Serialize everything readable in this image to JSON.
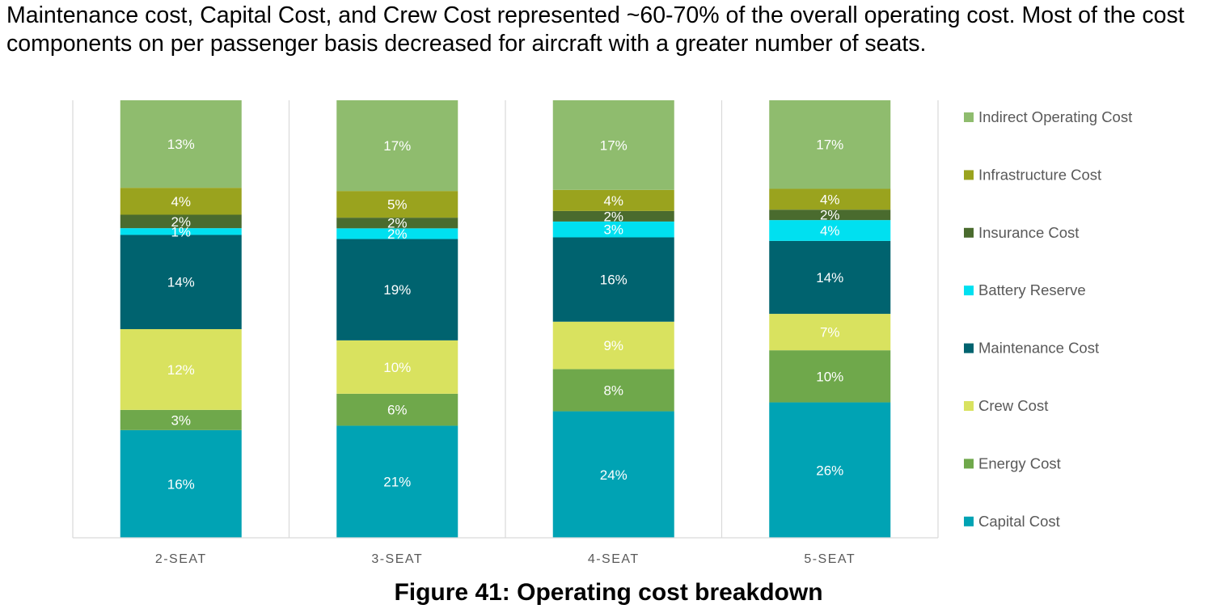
{
  "intro_text": "Maintenance cost, Capital Cost, and Crew Cost represented ~60-70% of the overall operating cost. Most of the cost components on per passenger basis decreased for aircraft with a greater number of seats.",
  "caption": "Figure 41: Operating cost breakdown",
  "chart_data": {
    "type": "bar",
    "stacked": true,
    "normalized": true,
    "categories": [
      "2-SEAT",
      "3-SEAT",
      "4-SEAT",
      "5-SEAT"
    ],
    "series": [
      {
        "name": "Capital Cost",
        "color": "#00A3B4",
        "values": [
          16,
          21,
          24,
          26
        ],
        "labels": [
          "16%",
          "21%",
          "24%",
          "26%"
        ]
      },
      {
        "name": "Energy Cost",
        "color": "#6FA84B",
        "values": [
          3,
          6,
          8,
          10
        ],
        "labels": [
          "3%",
          "6%",
          "8%",
          "10%"
        ]
      },
      {
        "name": "Crew Cost",
        "color": "#D9E25F",
        "values": [
          12,
          10,
          9,
          7
        ],
        "labels": [
          "12%",
          "10%",
          "9%",
          "7%"
        ]
      },
      {
        "name": "Maintenance Cost",
        "color": "#00636F",
        "values": [
          14,
          19,
          16,
          14
        ],
        "labels": [
          "14%",
          "19%",
          "16%",
          "14%"
        ]
      },
      {
        "name": "Battery Reserve",
        "color": "#00E0F0",
        "values": [
          1,
          2,
          3,
          4
        ],
        "labels": [
          "1%",
          "2%",
          "3%",
          "4%"
        ]
      },
      {
        "name": "Insurance Cost",
        "color": "#4A6B2E",
        "values": [
          2,
          2,
          2,
          2
        ],
        "labels": [
          "2%",
          "2%",
          "2%",
          "2%"
        ]
      },
      {
        "name": "Infrastructure Cost",
        "color": "#9AA31E",
        "values": [
          4,
          5,
          4,
          4
        ],
        "labels": [
          "4%",
          "5%",
          "4%",
          "4%"
        ]
      },
      {
        "name": "Indirect Operating Cost",
        "color": "#8FBC6E",
        "values": [
          13,
          17,
          17,
          17
        ],
        "labels": [
          "13%",
          "17%",
          "17%",
          "17%"
        ]
      }
    ],
    "legend": {
      "placement": "right",
      "order": "top-to-bottom reversed series order"
    },
    "gridlines": "vertical category separators",
    "label_color": "#FFFFFF"
  }
}
